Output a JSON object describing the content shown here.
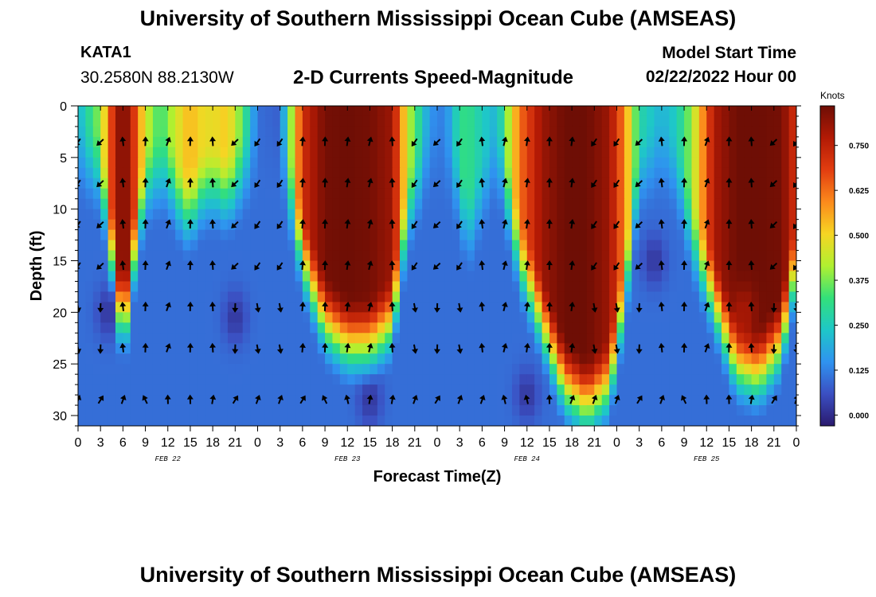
{
  "header": {
    "title": "University of Southern Mississippi Ocean Cube (AMSEAS)",
    "station": "KATA1",
    "coords": "30.2580N  88.2130W",
    "plot_title": "2-D Currents Speed-Magnitude",
    "model_start_label": "Model Start Time",
    "model_start_value": "02/22/2022 Hour 00"
  },
  "footer": {
    "title": "University of Southern Mississippi Ocean Cube (AMSEAS)"
  },
  "chart_data": {
    "type": "heatmap",
    "title": "2-D Currents Speed-Magnitude",
    "xlabel": "Forecast Time(Z)",
    "ylabel": "Depth (ft)",
    "x_tick_labels": [
      "0",
      "3",
      "6",
      "9",
      "12",
      "15",
      "18",
      "21",
      "0",
      "3",
      "6",
      "9",
      "12",
      "15",
      "18",
      "21",
      "0",
      "3",
      "6",
      "9",
      "12",
      "15",
      "18",
      "21",
      "0",
      "3",
      "6",
      "9",
      "12",
      "15",
      "18",
      "21",
      "0"
    ],
    "x_hours_range": [
      0,
      96
    ],
    "date_labels": [
      {
        "label": "FEB 22",
        "hour": 12
      },
      {
        "label": "FEB 23",
        "hour": 36
      },
      {
        "label": "FEB 24",
        "hour": 60
      },
      {
        "label": "FEB 25",
        "hour": 84
      }
    ],
    "y_ticks": [
      0,
      5,
      10,
      15,
      20,
      25,
      30
    ],
    "y_range_ft": [
      0,
      31
    ],
    "colorbar": {
      "units": "Knots",
      "range": [
        -0.03,
        0.86
      ],
      "tick_values": [
        0.0,
        0.125,
        0.25,
        0.375,
        0.5,
        0.625,
        0.75
      ],
      "tick_labels": [
        "0.000",
        "0.125",
        "0.250",
        "0.375",
        "0.500",
        "0.625",
        "0.750"
      ],
      "colors": [
        "#2a1a6e",
        "#3b4fc2",
        "#2f93f0",
        "#1ec7c8",
        "#33e07a",
        "#b0f030",
        "#f6d523",
        "#fb8a1c",
        "#e23d10",
        "#b21a05",
        "#6e0e05"
      ]
    },
    "arrow_depths_ft": [
      3.5,
      7.5,
      11.5,
      15.5,
      19.5,
      23.5,
      28.5
    ],
    "arrow_hours": [
      0,
      3,
      6,
      9,
      12,
      15,
      18,
      21,
      24,
      27,
      30,
      33,
      36,
      39,
      42,
      45,
      48,
      51,
      54,
      57,
      60,
      63,
      66,
      69,
      72,
      75,
      78,
      81,
      84,
      87,
      90,
      93,
      96
    ],
    "speed_profile": {
      "hours": [
        0,
        3,
        5,
        6,
        7,
        9,
        11,
        12,
        13,
        15,
        16,
        18,
        20,
        22,
        24,
        27,
        28,
        30,
        33,
        36,
        39,
        42,
        44,
        47,
        49,
        51,
        52,
        54,
        56,
        59,
        62,
        65,
        68,
        71,
        73,
        75,
        78,
        80,
        82,
        85,
        88,
        91,
        94,
        96
      ],
      "surface_knots": [
        0.2,
        0.4,
        0.78,
        0.85,
        0.78,
        0.45,
        0.32,
        0.38,
        0.45,
        0.55,
        0.5,
        0.48,
        0.52,
        0.35,
        0.1,
        0.08,
        0.3,
        0.72,
        0.85,
        0.86,
        0.85,
        0.8,
        0.45,
        0.15,
        0.12,
        0.3,
        0.32,
        0.25,
        0.2,
        0.62,
        0.8,
        0.86,
        0.86,
        0.8,
        0.6,
        0.28,
        0.2,
        0.25,
        0.4,
        0.78,
        0.86,
        0.86,
        0.85,
        0.7
      ],
      "max_depth_ft": [
        0,
        2,
        12,
        18,
        12,
        3,
        2,
        2,
        4,
        6,
        4,
        3,
        4,
        2,
        0,
        0,
        3,
        10,
        16,
        18,
        18,
        16,
        6,
        0,
        0,
        4,
        8,
        4,
        0,
        10,
        16,
        22,
        24,
        22,
        14,
        2,
        0,
        2,
        8,
        14,
        20,
        21,
        18,
        10
      ]
    }
  }
}
